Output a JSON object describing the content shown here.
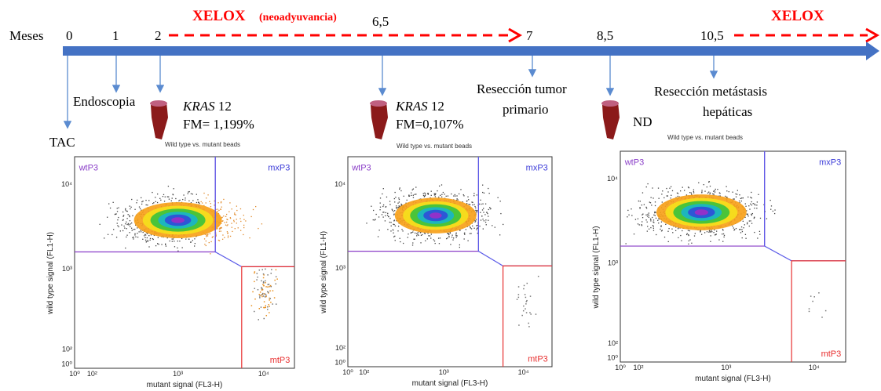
{
  "timeline": {
    "axis_label": "Meses",
    "months": [
      "0",
      "1",
      "2",
      "6,5",
      "7",
      "8,5",
      "10,5"
    ],
    "treatments": [
      {
        "name": "XELOX",
        "note": "(neoadyuvancia)"
      },
      {
        "name": "XELOX"
      }
    ],
    "events": {
      "tac": "TAC",
      "endoscopy": "Endoscopia",
      "primary": [
        "Resección tumor",
        "primario"
      ],
      "metastasis": [
        "Resección metástasis",
        "hepáticas"
      ]
    },
    "samples": [
      {
        "gene": "KRAS",
        "codon": "12",
        "result": "FM= 1,199%"
      },
      {
        "gene": "KRAS",
        "codon": "12",
        "result": "FM=0,107%"
      },
      {
        "result": "ND"
      }
    ]
  },
  "plots": [
    {
      "title": "Wild type vs. mutant beads",
      "gates": [
        "wtP3",
        "mxP3",
        "mtP3"
      ],
      "x_label": "mutant signal (FL3-H)",
      "y_label": "wild type signal (FL1-H)",
      "xticks": [
        "10⁰",
        "10²",
        "10³",
        "10⁴"
      ],
      "yticks": [
        "10⁴",
        "10³",
        "10²",
        "10⁰"
      ]
    },
    {
      "title": "Wild type vs. mutant beads",
      "gates": [
        "wtP3",
        "mxP3",
        "mtP3"
      ],
      "x_label": "mutant signal (FL3-H)",
      "y_label": "wild type signal (FL1-H)",
      "xticks": [
        "10⁰",
        "10²",
        "10³",
        "10⁴"
      ],
      "yticks": [
        "10⁴",
        "10³",
        "10²",
        "10⁰"
      ]
    },
    {
      "title": "Wild type vs. mutant beads",
      "gates": [
        "wtP3",
        "mxP3",
        "mtP3"
      ],
      "x_label": "mutant signal (FL3-H)",
      "y_label": "wild type signal (FL1-H)",
      "xticks": [
        "10⁰",
        "10²",
        "10³",
        "10⁴"
      ],
      "yticks": [
        "10⁴",
        "10³",
        "10²",
        "10⁰"
      ]
    }
  ]
}
